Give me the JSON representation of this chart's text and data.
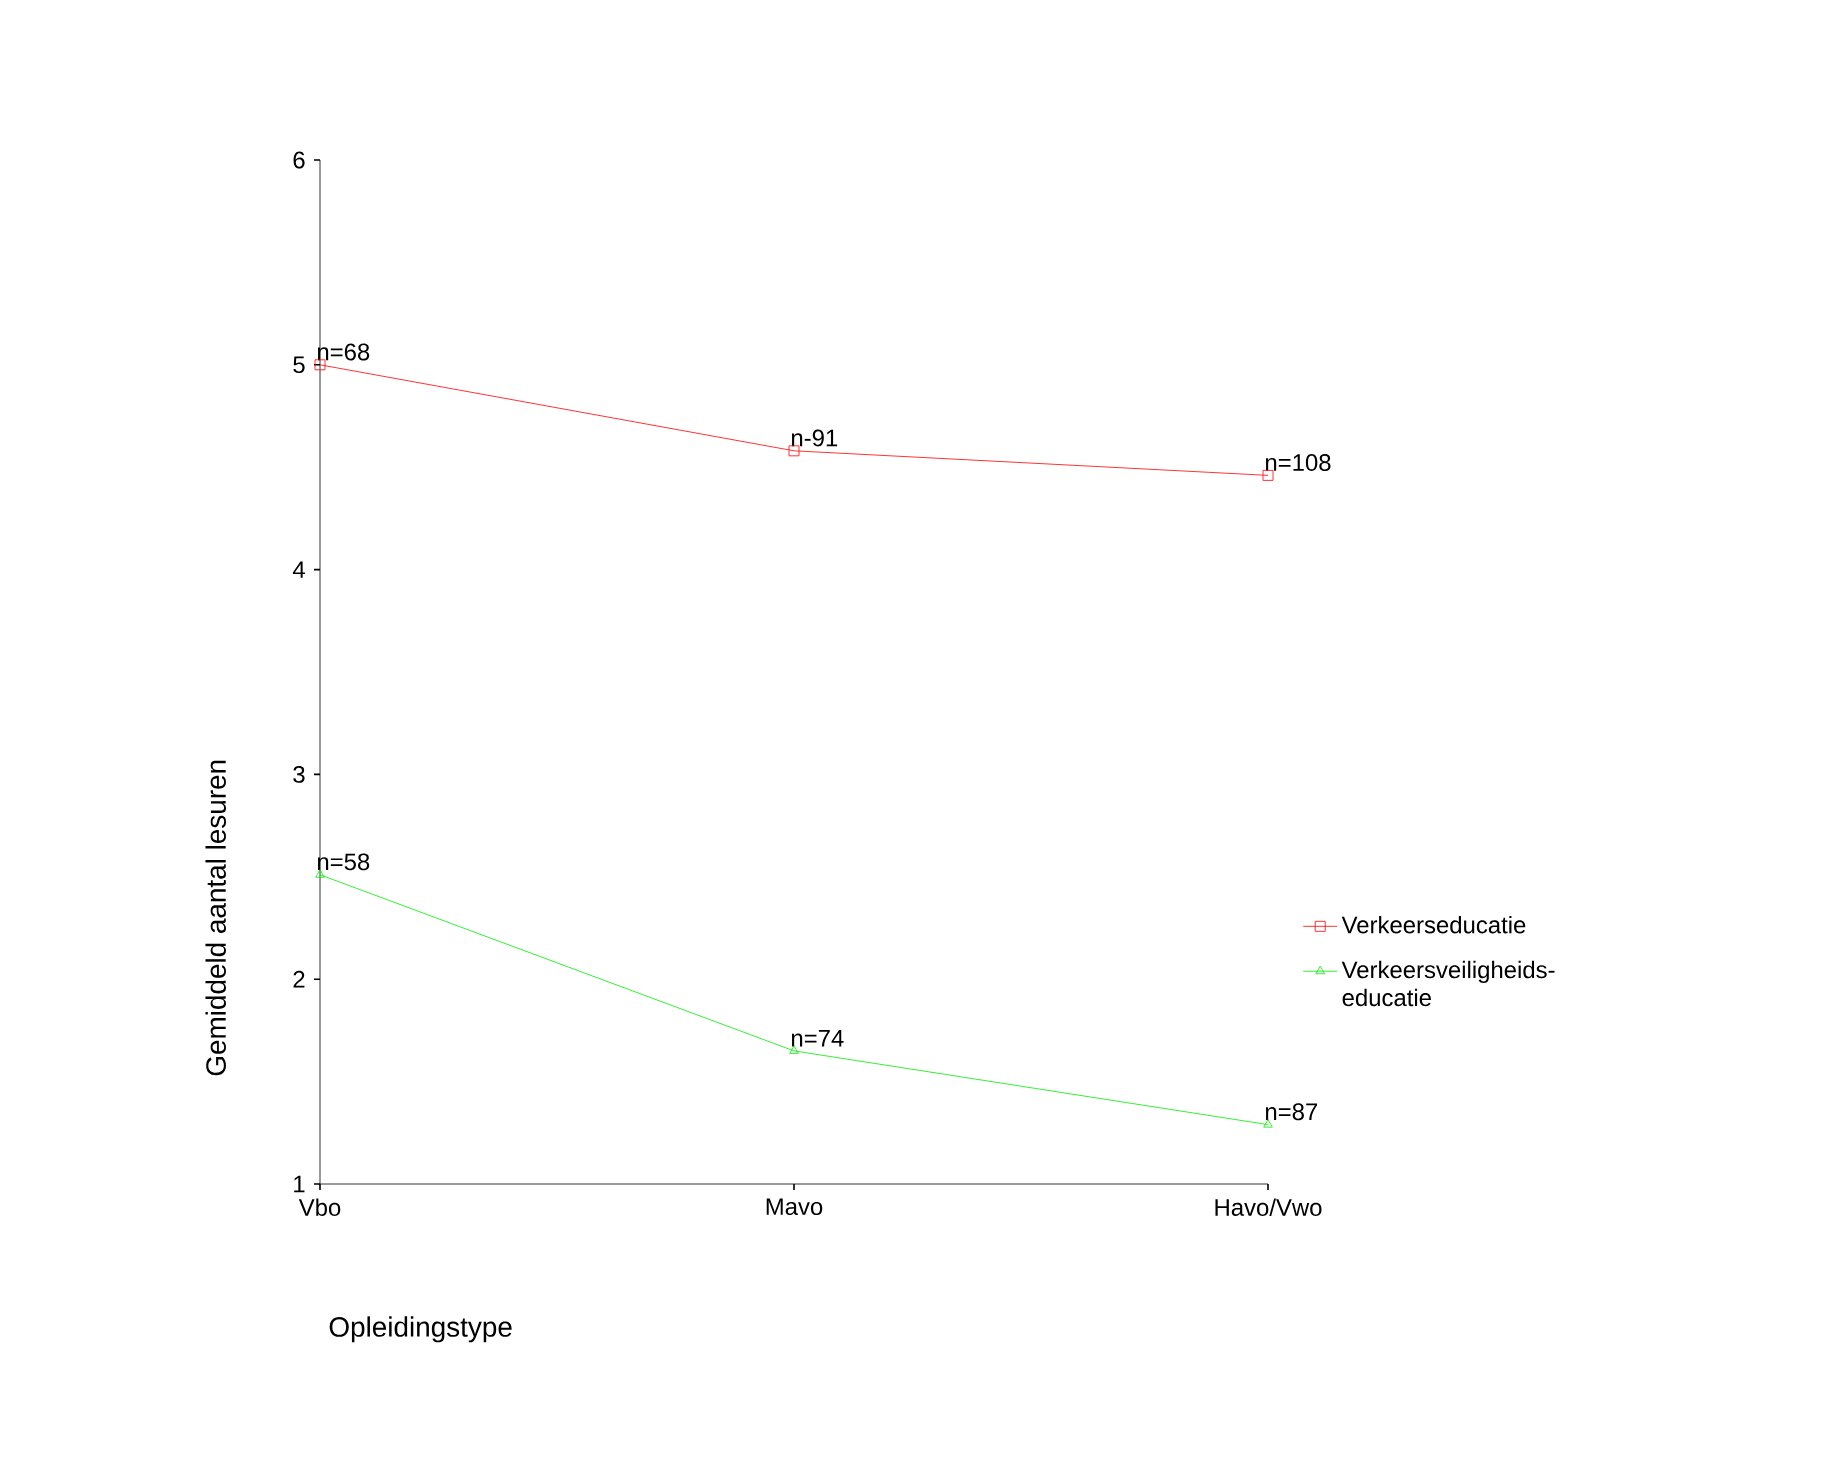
{
  "chart_data": {
    "type": "line",
    "xlabel": "Opleidingstype",
    "ylabel": "Gemiddeld aantal lesuren",
    "categories": [
      "Vbo",
      "Mavo",
      "Havo/Vwo"
    ],
    "series": [
      {
        "name": "Verkeerseducatie",
        "color": "#ff0000",
        "marker": "square",
        "values": [
          5.0,
          4.58,
          4.46
        ]
      },
      {
        "name": "Verkeersveiligheids-educatie",
        "color": "#00ee00",
        "marker": "triangle",
        "values": [
          2.51,
          1.65,
          1.29
        ]
      }
    ],
    "ylim": [
      1,
      6
    ],
    "yticks": [
      1,
      2,
      3,
      4,
      5,
      6
    ],
    "legend": "bottom right",
    "grid": false,
    "annotations": [
      {
        "text": "n=68",
        "x": "Vbo",
        "y": 5.0
      },
      {
        "text": "n-91",
        "x": "Mavo",
        "y": 4.58
      },
      {
        "text": "n=108",
        "x": "Havo/Vwo",
        "y": 4.46
      },
      {
        "text": "n=58",
        "x": "Vbo",
        "y": 2.51
      },
      {
        "text": "n=74",
        "x": "Mavo",
        "y": 1.65
      },
      {
        "text": "n=87",
        "x": "Havo/Vwo",
        "y": 1.29
      }
    ]
  }
}
